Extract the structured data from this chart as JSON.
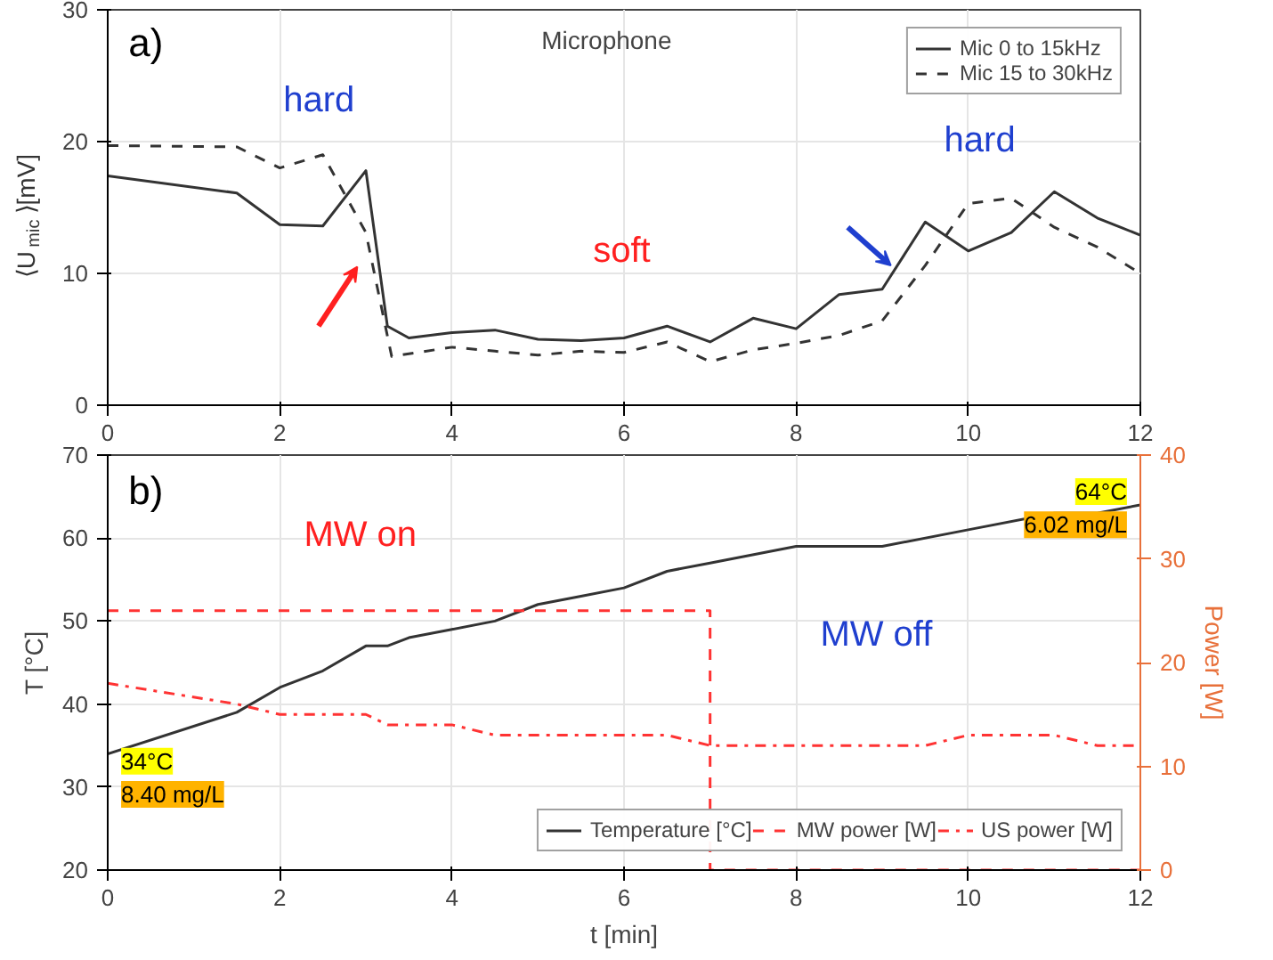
{
  "chart_data": [
    {
      "type": "line",
      "title": "Microphone",
      "ylabel": "⟨U$_{mic}$⟩[mV]",
      "xlim": [
        0,
        12
      ],
      "xticks": [
        0,
        2,
        4,
        6,
        8,
        10,
        12
      ],
      "ylim": [
        0,
        30
      ],
      "yticks": [
        0,
        10,
        20,
        30
      ],
      "grid": true,
      "legend": "top right",
      "annotations": [
        "a)",
        "hard",
        "soft",
        "hard"
      ],
      "series": [
        {
          "name": "Mic 0 to 15kHz",
          "color": "#333333",
          "line_style": "solid",
          "x": [
            0,
            1.5,
            2,
            2.5,
            3,
            3.25,
            3.5,
            4,
            4.5,
            5,
            5.5,
            6,
            6.5,
            7,
            7.5,
            8,
            8.5,
            9,
            9.5,
            10,
            10.5,
            11,
            11.5,
            12
          ],
          "values": [
            17.4,
            16.1,
            13.7,
            13.6,
            17.8,
            6.0,
            5.1,
            5.5,
            5.7,
            5.0,
            4.9,
            5.1,
            6.0,
            4.8,
            6.6,
            5.8,
            8.4,
            8.8,
            13.9,
            11.7,
            13.1,
            16.2,
            14.2,
            12.9
          ]
        },
        {
          "name": "Mic 15 to 30kHz",
          "color": "#333333",
          "line_style": "dashed",
          "x": [
            0,
            1.5,
            2,
            2.5,
            3,
            3.3,
            4,
            4.5,
            5,
            5.5,
            6,
            6.5,
            7,
            7.5,
            8,
            8.5,
            9,
            9.5,
            10,
            10.5,
            11,
            11.5,
            12
          ],
          "values": [
            19.7,
            19.6,
            18.0,
            19.0,
            13.1,
            3.7,
            4.4,
            4.1,
            3.8,
            4.1,
            4.0,
            4.8,
            3.3,
            4.2,
            4.7,
            5.3,
            6.4,
            10.6,
            15.3,
            15.7,
            13.5,
            12.0,
            10.0
          ]
        }
      ]
    },
    {
      "type": "line",
      "xlabel": "t [min]",
      "ylabel": "T [°C]",
      "y2label": "Power [W]",
      "xlim": [
        0,
        12
      ],
      "xticks": [
        0,
        2,
        4,
        6,
        8,
        10,
        12
      ],
      "ylim": [
        20,
        70
      ],
      "yticks": [
        20,
        30,
        40,
        50,
        60,
        70
      ],
      "y2lim": [
        0,
        40
      ],
      "y2ticks": [
        0,
        10,
        20,
        30,
        40
      ],
      "grid": true,
      "legend": "bottom right",
      "annotations": [
        "b)",
        "MW on",
        "MW off",
        "34°C",
        "8.40 mg/L",
        "64°C",
        "6.02 mg/L"
      ],
      "series": [
        {
          "name": "Temperature [°C]",
          "color": "#333333",
          "line_style": "solid",
          "x": [
            0,
            1.5,
            2,
            2.5,
            3,
            3.25,
            3.5,
            4,
            4.5,
            5,
            5.5,
            6,
            6.5,
            7,
            8,
            9,
            10,
            11,
            11.5,
            12
          ],
          "values": [
            34,
            39,
            42,
            44,
            47,
            47,
            48,
            49,
            50,
            52,
            53,
            54,
            56,
            57,
            59,
            59,
            61,
            63,
            63,
            64
          ]
        },
        {
          "name": "MW power [W]",
          "color": "#ff3333",
          "line_style": "dashed",
          "axis": "y2",
          "x": [
            0,
            7,
            7,
            12
          ],
          "values": [
            25,
            25,
            0,
            0
          ]
        },
        {
          "name": "US power [W]",
          "color": "#ff3333",
          "line_style": "dashdot",
          "axis": "y2",
          "x": [
            0,
            1.5,
            2,
            3,
            3.25,
            4,
            4.5,
            6.5,
            7,
            9.5,
            10,
            11,
            11.5,
            12
          ],
          "values": [
            18,
            16,
            15,
            15,
            14,
            14,
            13,
            13,
            12,
            12,
            13,
            13,
            12,
            12
          ]
        }
      ]
    }
  ]
}
